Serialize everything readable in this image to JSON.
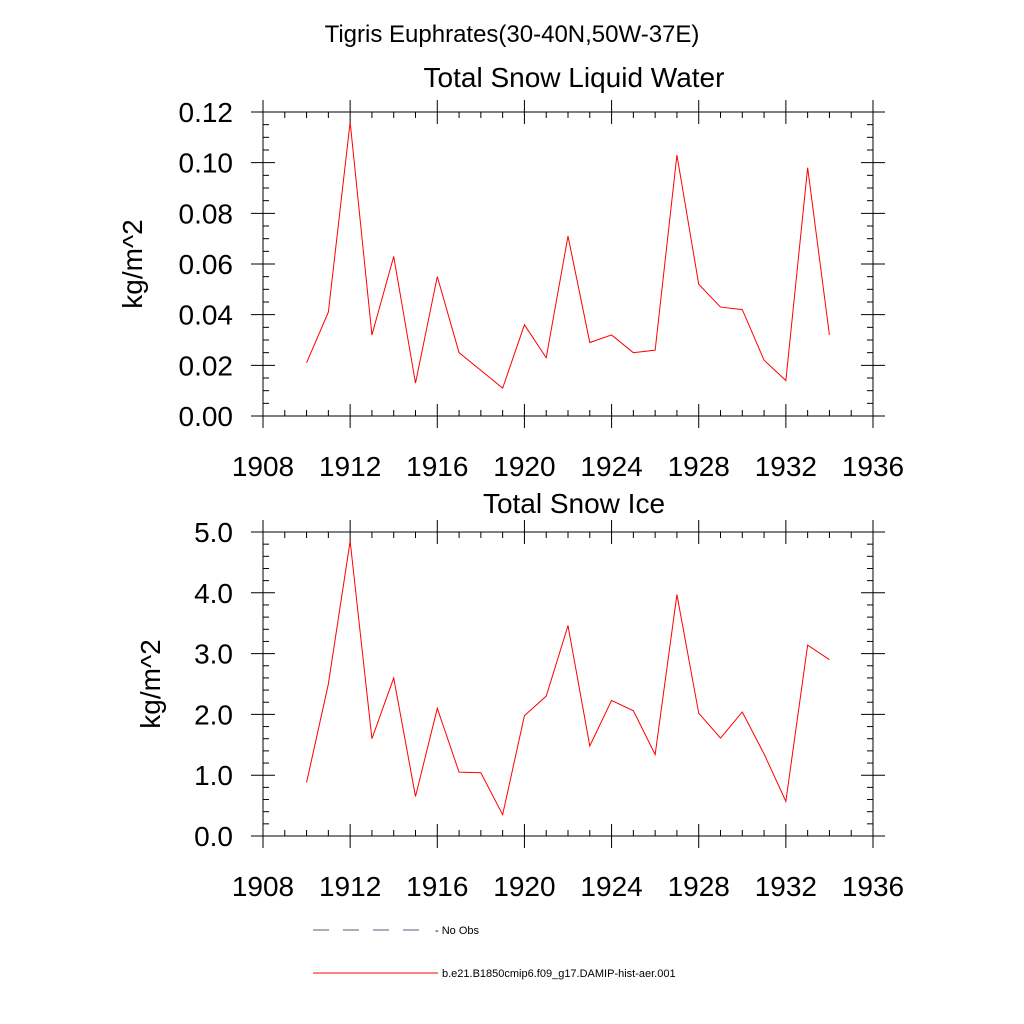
{
  "figure": {
    "suptitle": "Tigris Euphrates(30-40N,50W-37E)"
  },
  "chart_data": [
    {
      "type": "line",
      "title": "Total Snow Liquid Water",
      "xlabel": "",
      "ylabel": "kg/m^2",
      "xlim": [
        1908,
        1936
      ],
      "ylim": [
        0.0,
        0.12
      ],
      "xticks": [
        "1908",
        "1912",
        "1916",
        "1920",
        "1924",
        "1928",
        "1932",
        "1936"
      ],
      "yticks": [
        "0.00",
        "0.02",
        "0.04",
        "0.06",
        "0.08",
        "0.10",
        "0.12"
      ],
      "x": [
        1910,
        1911,
        1912,
        1913,
        1914,
        1915,
        1916,
        1917,
        1918,
        1919,
        1920,
        1921,
        1922,
        1923,
        1924,
        1925,
        1926,
        1927,
        1928,
        1929,
        1930,
        1931,
        1932,
        1933,
        1934
      ],
      "series": [
        {
          "name": "b.e21.B1850cmip6.f09_g17.DAMIP-hist-aer.001",
          "color": "#ff0000",
          "values": [
            0.021,
            0.041,
            0.116,
            0.032,
            0.063,
            0.013,
            0.055,
            0.025,
            0.018,
            0.011,
            0.036,
            0.023,
            0.071,
            0.029,
            0.032,
            0.025,
            0.026,
            0.103,
            0.052,
            0.043,
            0.042,
            0.022,
            0.014,
            0.098,
            0.032
          ]
        }
      ]
    },
    {
      "type": "line",
      "title": "Total Snow Ice",
      "xlabel": "",
      "ylabel": "kg/m^2",
      "xlim": [
        1908,
        1936
      ],
      "ylim": [
        0.0,
        5.0
      ],
      "xticks": [
        "1908",
        "1912",
        "1916",
        "1920",
        "1924",
        "1928",
        "1932",
        "1936"
      ],
      "yticks": [
        "0.0",
        "1.0",
        "2.0",
        "3.0",
        "4.0",
        "5.0"
      ],
      "x": [
        1910,
        1911,
        1912,
        1913,
        1914,
        1915,
        1916,
        1917,
        1918,
        1919,
        1920,
        1921,
        1922,
        1923,
        1924,
        1925,
        1926,
        1927,
        1928,
        1929,
        1930,
        1931,
        1932,
        1933,
        1934
      ],
      "series": [
        {
          "name": "b.e21.B1850cmip6.f09_g17.DAMIP-hist-aer.001",
          "color": "#ff0000",
          "values": [
            0.88,
            2.5,
            4.85,
            1.6,
            2.6,
            0.65,
            2.1,
            1.05,
            1.04,
            0.35,
            1.98,
            2.3,
            3.46,
            1.48,
            2.23,
            2.06,
            1.34,
            3.97,
            2.02,
            1.61,
            2.04,
            1.35,
            0.57,
            3.14,
            2.9
          ]
        }
      ]
    }
  ],
  "legend": {
    "placement": "bottom",
    "entries": [
      {
        "label": "- No Obs",
        "color": "#5a5a78",
        "style": "dashed"
      },
      {
        "label": "b.e21.B1850cmip6.f09_g17.DAMIP-hist-aer.001",
        "color": "#ff0000",
        "style": "solid"
      }
    ]
  }
}
